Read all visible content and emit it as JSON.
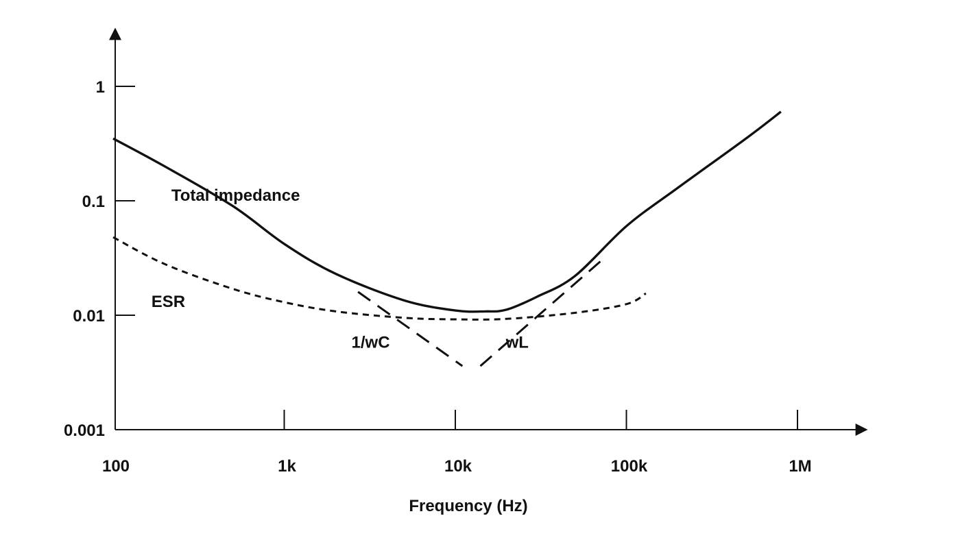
{
  "chart_data": {
    "type": "line",
    "title": "",
    "xlabel": "Frequency (Hz)",
    "ylabel": "",
    "x_scale": "log",
    "y_scale": "log",
    "xlim": [
      100,
      2000000
    ],
    "ylim": [
      0.001,
      5
    ],
    "grid": false,
    "legend": "none",
    "x_ticks": [
      {
        "value": 100,
        "label": "100"
      },
      {
        "value": 1000,
        "label": "1k"
      },
      {
        "value": 10000,
        "label": "10k"
      },
      {
        "value": 100000,
        "label": "100k"
      },
      {
        "value": 1000000,
        "label": "1M"
      }
    ],
    "y_ticks": [
      {
        "value": 0.001,
        "label": "0.001"
      },
      {
        "value": 0.01,
        "label": "0.01"
      },
      {
        "value": 0.1,
        "label": "0.1"
      },
      {
        "value": 1,
        "label": "1"
      }
    ],
    "series": [
      {
        "name": "Total impedance",
        "style": "solid",
        "color": "#111111",
        "label_at": {
          "x": 520,
          "y": 0.1
        },
        "points": [
          {
            "x": 100,
            "y": 0.35
          },
          {
            "x": 200,
            "y": 0.2
          },
          {
            "x": 500,
            "y": 0.09
          },
          {
            "x": 1000,
            "y": 0.042
          },
          {
            "x": 2000,
            "y": 0.023
          },
          {
            "x": 5000,
            "y": 0.0135
          },
          {
            "x": 10000,
            "y": 0.011
          },
          {
            "x": 15000,
            "y": 0.0108
          },
          {
            "x": 20000,
            "y": 0.0112
          },
          {
            "x": 30000,
            "y": 0.0145
          },
          {
            "x": 50000,
            "y": 0.022
          },
          {
            "x": 100000,
            "y": 0.06
          },
          {
            "x": 200000,
            "y": 0.13
          },
          {
            "x": 500000,
            "y": 0.35
          },
          {
            "x": 800000,
            "y": 0.6
          }
        ]
      },
      {
        "name": "ESR",
        "style": "dotted",
        "color": "#111111",
        "label_at": {
          "x": 210,
          "y": 0.0118
        },
        "points": [
          {
            "x": 100,
            "y": 0.048
          },
          {
            "x": 200,
            "y": 0.028
          },
          {
            "x": 500,
            "y": 0.017
          },
          {
            "x": 1000,
            "y": 0.013
          },
          {
            "x": 2000,
            "y": 0.0108
          },
          {
            "x": 5000,
            "y": 0.0095
          },
          {
            "x": 10000,
            "y": 0.0092
          },
          {
            "x": 20000,
            "y": 0.0093
          },
          {
            "x": 50000,
            "y": 0.0105
          },
          {
            "x": 100000,
            "y": 0.0125
          },
          {
            "x": 130000,
            "y": 0.0155
          }
        ]
      },
      {
        "name": "1/wC",
        "style": "dashed",
        "color": "#111111",
        "label_at": {
          "x": 3200,
          "y": 0.0052
        },
        "points": [
          {
            "x": 2700,
            "y": 0.016
          },
          {
            "x": 11000,
            "y": 0.0036
          }
        ]
      },
      {
        "name": "wL",
        "style": "dashed",
        "color": "#111111",
        "label_at": {
          "x": 23000,
          "y": 0.0052
        },
        "points": [
          {
            "x": 14000,
            "y": 0.0036
          },
          {
            "x": 75000,
            "y": 0.032
          }
        ]
      }
    ]
  }
}
